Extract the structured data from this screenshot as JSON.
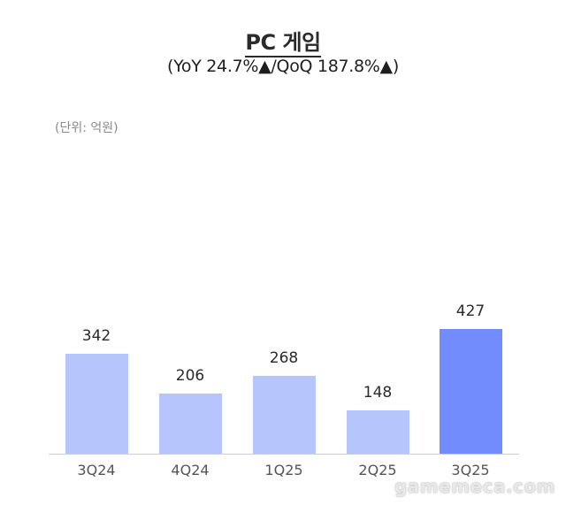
{
  "header": {
    "title": "PC 게임",
    "subtitle": "(YoY 24.7%▲/QoQ 187.8%▲)",
    "unit": "(단위: 억원)"
  },
  "watermark": "gamemeca.com",
  "colors": {
    "bar_default": "#b6c5fb",
    "bar_highlight": "#728cfd",
    "baseline": "#cfcfcf"
  },
  "chart_data": {
    "type": "bar",
    "title": "PC 게임",
    "subtitle": "(YoY 24.7%▲/QoQ 187.8%▲)",
    "unit": "억원",
    "categories": [
      "3Q24",
      "4Q24",
      "1Q25",
      "2Q25",
      "3Q25"
    ],
    "values": [
      342,
      206,
      268,
      148,
      427
    ],
    "highlight_index": 4,
    "xlabel": "",
    "ylabel": "",
    "grid": false,
    "legend": false,
    "data_labels": true
  }
}
